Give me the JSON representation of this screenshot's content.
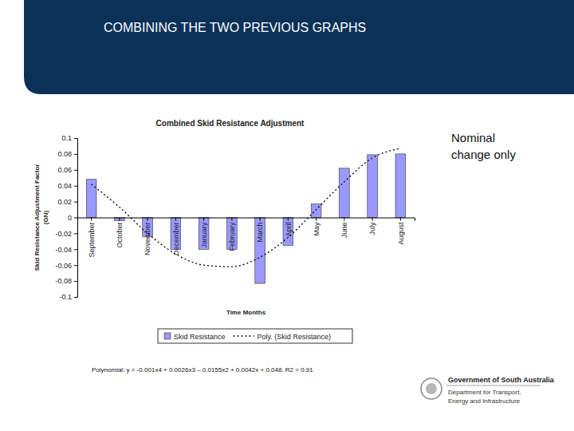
{
  "slide": {
    "title": "COMBINING THE TWO PREVIOUS GRAPHS",
    "logo": [
      "Government of South Australia",
      "Department for Transport,",
      "Energy and Infrastructure"
    ]
  },
  "chart_data": {
    "type": "bar",
    "title": "Combined Skid Resistance Adjustment",
    "x_label": "Time Months",
    "y_label": [
      "Skid Resistance Adjustment Factor",
      "(GN)"
    ],
    "categories": [
      "September",
      "October",
      "November",
      "December",
      "January",
      "February",
      "March",
      "April",
      "May",
      "June",
      "July",
      "August"
    ],
    "series": [
      {
        "name": "Skid Resistance",
        "type": "bar",
        "color": "#9999ff",
        "values": [
          0.048,
          -0.004,
          -0.024,
          -0.04,
          -0.04,
          -0.04,
          -0.083,
          -0.035,
          0.017,
          0.062,
          0.079,
          0.08
        ]
      },
      {
        "name": "Poly. (Skid Resistance)",
        "type": "line",
        "color": "#000000",
        "line_style": "dotted",
        "values": [
          0.042,
          0.013,
          -0.02,
          -0.046,
          -0.06,
          -0.062,
          -0.05,
          -0.025,
          0.01,
          0.045,
          0.075,
          0.087
        ]
      }
    ],
    "ylim": [
      -0.1,
      0.1
    ],
    "yticks": [
      -0.1,
      -0.08,
      -0.06,
      -0.04,
      -0.02,
      0,
      0.02,
      0.04,
      0.06,
      0.08,
      0.1
    ],
    "grid": false,
    "legend": "bottom",
    "annotations": [
      "Nominal change only",
      "Polynomial: y = -0.001x4 + 0.0026x3 – 0.0155x2 + 0.0042x + 0.048. R2 = 0.91"
    ]
  }
}
